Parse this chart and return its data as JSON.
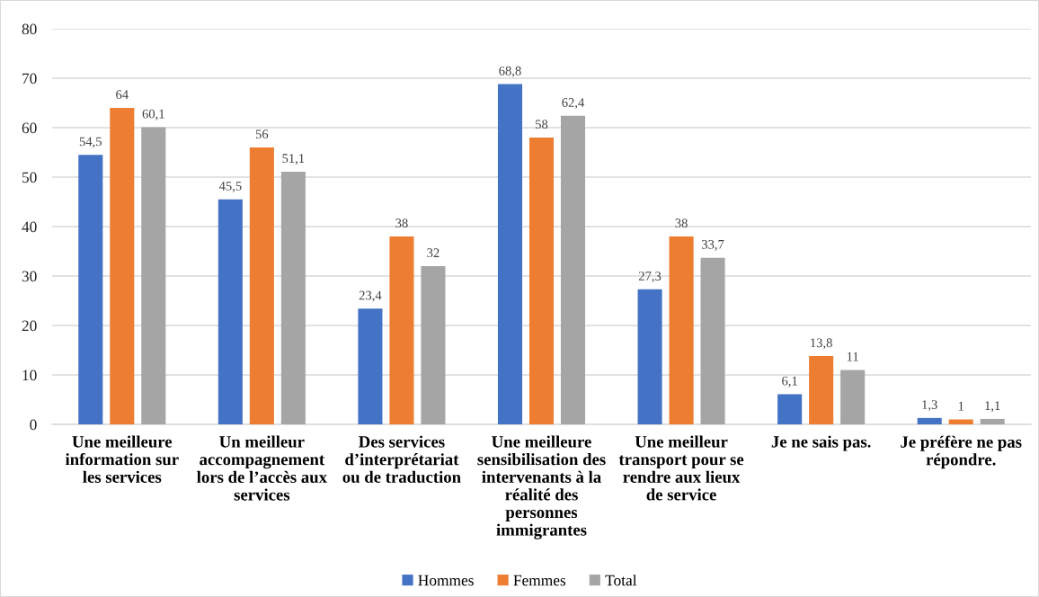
{
  "chart_data": {
    "type": "bar",
    "categories": [
      "Une meilleure\ninformation sur\nles services",
      "Un meilleur\naccompagnement\nlors de l’accès aux\nservices",
      "Des services\nd’interprétariat\nou de traduction",
      "Une meilleure\nsensibilisation des\nintervenants à la\nréalité des\npersonnes\nimmigrantes",
      "Une meilleur\ntransport pour se\nrendre aux lieux\nde service",
      "Je ne sais pas.",
      "Je préfère ne pas\nrépondre."
    ],
    "series": [
      {
        "name": "Hommes",
        "color": "#4472c4",
        "values": [
          54.5,
          45.5,
          23.4,
          68.8,
          27.3,
          6.1,
          1.3
        ],
        "value_labels": [
          "54,5",
          "45,5",
          "23,4",
          "68,8",
          "27,3",
          "6,1",
          "1,3"
        ]
      },
      {
        "name": "Femmes",
        "color": "#ed7d31",
        "values": [
          64,
          56,
          38,
          58,
          38,
          13.8,
          1
        ],
        "value_labels": [
          "64",
          "56",
          "38",
          "58",
          "38",
          "13,8",
          "1"
        ]
      },
      {
        "name": "Total",
        "color": "#a5a5a5",
        "values": [
          60.1,
          51.1,
          32,
          62.4,
          33.7,
          11,
          1.1
        ],
        "value_labels": [
          "60,1",
          "51,1",
          "32",
          "62,4",
          "33,7",
          "11",
          "1,1"
        ]
      }
    ],
    "ylim": [
      0,
      80
    ],
    "yticks": [
      0,
      10,
      20,
      30,
      40,
      50,
      60,
      70,
      80
    ],
    "grid": "y",
    "legend": "bottom"
  }
}
